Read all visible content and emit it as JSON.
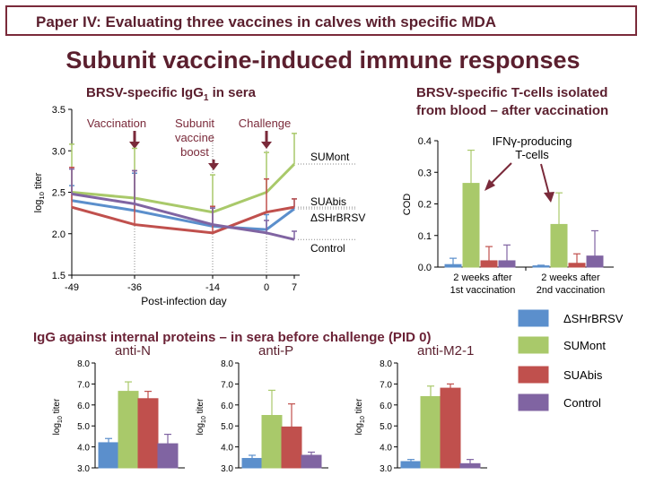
{
  "header": {
    "title": "Paper IV: Evaluating three vaccines in calves with specific MDA"
  },
  "main_title": "Subunit vaccine-induced immune responses",
  "section_bottom_title": "IgG against internal proteins – in sera before challenge (PID 0)",
  "colors": {
    "dSHrBRSV": "#5b8fcc",
    "SUMont": "#a9c96a",
    "SUAbis": "#c0504d",
    "Control": "#8064a2",
    "title": "#5b1f2e",
    "annotation": "#7a2a3a"
  },
  "legend": {
    "items": [
      "ΔSHrBRSV",
      "SUMont",
      "SUAbis",
      "Control"
    ]
  },
  "chart_data": [
    {
      "type": "line",
      "title": "BRSV-specific IgG",
      "title_sub": "1",
      "title_suffix": " in sera",
      "xlabel": "Post-infection day",
      "ylabel": "log",
      "ylabel_sub": "10",
      "ylabel_suffix": " titer",
      "x": [
        -49,
        -36,
        -14,
        0,
        7
      ],
      "x_ticks": [
        "-49",
        "-36",
        "-14",
        "0",
        "7"
      ],
      "ylim": [
        1.5,
        3.5
      ],
      "y_ticks": [
        "1.5",
        "2.0",
        "2.5",
        "3.0",
        "3.5"
      ],
      "series": [
        {
          "name": "ΔSHrBRSV",
          "values": [
            2.4,
            2.28,
            2.09,
            2.05,
            2.3
          ],
          "err": [
            0.18,
            0.45,
            0.22,
            0.18,
            0.12
          ]
        },
        {
          "name": "SUMont",
          "values": [
            2.5,
            2.43,
            2.26,
            2.5,
            2.84
          ],
          "err": [
            0.58,
            0.6,
            0.45,
            0.48,
            0.37
          ]
        },
        {
          "name": "SUAbis",
          "values": [
            2.32,
            2.11,
            2.01,
            2.26,
            2.32
          ],
          "err": [
            0.48,
            0.65,
            0.32,
            0.4,
            0.1
          ]
        },
        {
          "name": "Control",
          "values": [
            2.48,
            2.36,
            2.11,
            2.01,
            1.93
          ],
          "err": [
            0.3,
            0.4,
            0.2,
            0.15,
            0.1
          ]
        }
      ],
      "series_labels": [
        "SUMont",
        "SUAbis",
        "ΔSHrBRSV",
        "Control"
      ],
      "annotations": [
        {
          "text": "Vaccination",
          "x": -36
        },
        {
          "lines": [
            "Subunit",
            "vaccine",
            "boost"
          ],
          "x": -14
        },
        {
          "text": "Challenge",
          "x": 0
        }
      ]
    },
    {
      "type": "bar",
      "title_lines": [
        "BRSV-specific T-cells isolated",
        "from blood – after vaccination"
      ],
      "ylabel": "COD",
      "ylim": [
        0,
        0.4
      ],
      "y_ticks": [
        "0.0",
        "0.1",
        "0.2",
        "0.3",
        "0.4"
      ],
      "categories": [
        [
          "2 weeks after",
          "1st vaccination"
        ],
        [
          "2 weeks after",
          "2nd vaccination"
        ]
      ],
      "series": [
        {
          "name": "ΔSHrBRSV",
          "values": [
            0.008,
            0.004
          ],
          "err": [
            0.02,
            0.002
          ]
        },
        {
          "name": "SUMont",
          "values": [
            0.265,
            0.135
          ],
          "err": [
            0.105,
            0.1
          ]
        },
        {
          "name": "SUAbis",
          "values": [
            0.02,
            0.012
          ],
          "err": [
            0.045,
            0.03
          ]
        },
        {
          "name": "Control",
          "values": [
            0.02,
            0.035
          ],
          "err": [
            0.05,
            0.08
          ]
        }
      ],
      "annotation": [
        "IFNγ-producing",
        "T-cells"
      ]
    },
    {
      "type": "bar",
      "title": "anti-N",
      "ylabel": "log",
      "ylabel_sub": "10",
      "ylabel_suffix": " titer",
      "ylim": [
        3.0,
        8.0
      ],
      "y_ticks": [
        "3.0",
        "4.0",
        "5.0",
        "6.0",
        "7.0",
        "8.0"
      ],
      "series": [
        {
          "name": "ΔSHrBRSV",
          "value": 4.2,
          "err": 0.2
        },
        {
          "name": "SUMont",
          "value": 6.65,
          "err": 0.45
        },
        {
          "name": "SUAbis",
          "value": 6.3,
          "err": 0.35
        },
        {
          "name": "Control",
          "value": 4.15,
          "err": 0.45
        }
      ]
    },
    {
      "type": "bar",
      "title": "anti-P",
      "ylabel": "log",
      "ylabel_sub": "10",
      "ylabel_suffix": " titer",
      "ylim": [
        3.0,
        8.0
      ],
      "y_ticks": [
        "3.0",
        "4.0",
        "5.0",
        "6.0",
        "7.0",
        "8.0"
      ],
      "series": [
        {
          "name": "ΔSHrBRSV",
          "value": 3.45,
          "err": 0.15
        },
        {
          "name": "SUMont",
          "value": 5.5,
          "err": 1.2
        },
        {
          "name": "SUAbis",
          "value": 4.95,
          "err": 1.1
        },
        {
          "name": "Control",
          "value": 3.6,
          "err": 0.15
        }
      ]
    },
    {
      "type": "bar",
      "title": "anti-M2-1",
      "ylabel": "log",
      "ylabel_sub": "10",
      "ylabel_suffix": " titer",
      "ylim": [
        3.0,
        8.0
      ],
      "y_ticks": [
        "3.0",
        "4.0",
        "5.0",
        "6.0",
        "7.0",
        "8.0"
      ],
      "series": [
        {
          "name": "ΔSHrBRSV",
          "value": 3.3,
          "err": 0.1
        },
        {
          "name": "SUMont",
          "value": 6.4,
          "err": 0.5
        },
        {
          "name": "SUAbis",
          "value": 6.8,
          "err": 0.2
        },
        {
          "name": "Control",
          "value": 3.2,
          "err": 0.2
        }
      ]
    }
  ]
}
